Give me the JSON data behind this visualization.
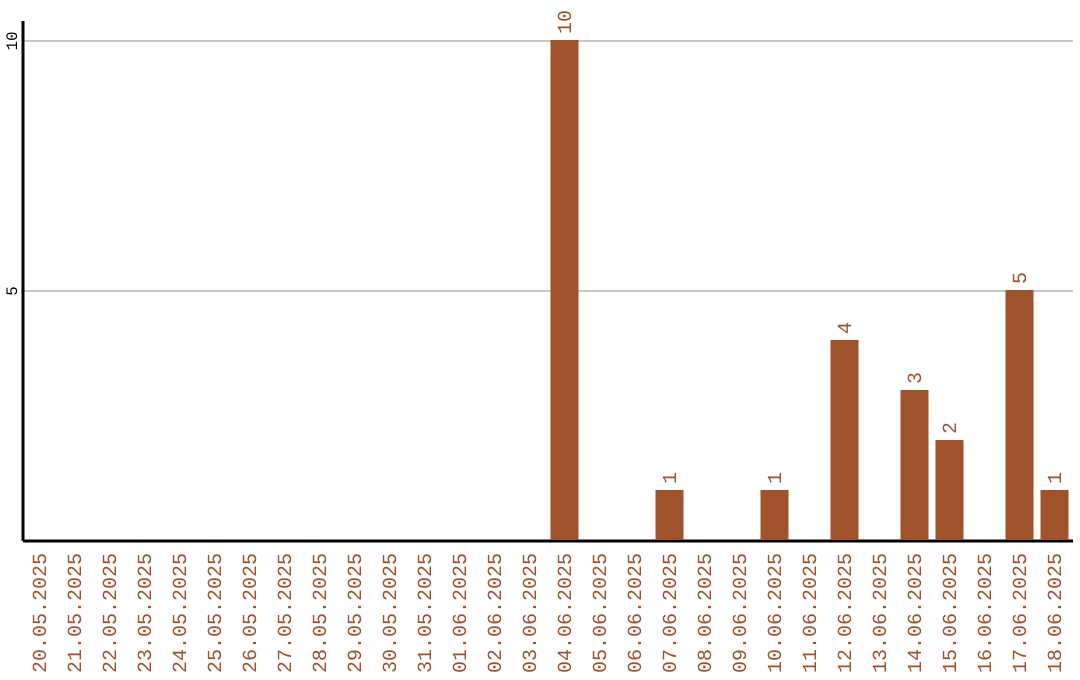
{
  "chart_data": {
    "type": "bar",
    "categories": [
      "20.05.2025",
      "21.05.2025",
      "22.05.2025",
      "23.05.2025",
      "24.05.2025",
      "25.05.2025",
      "26.05.2025",
      "27.05.2025",
      "28.05.2025",
      "29.05.2025",
      "30.05.2025",
      "31.05.2025",
      "01.06.2025",
      "02.06.2025",
      "03.06.2025",
      "04.06.2025",
      "05.06.2025",
      "06.06.2025",
      "07.06.2025",
      "08.06.2025",
      "09.06.2025",
      "10.06.2025",
      "11.06.2025",
      "12.06.2025",
      "13.06.2025",
      "14.06.2025",
      "15.06.2025",
      "16.06.2025",
      "17.06.2025",
      "18.06.2025"
    ],
    "values": [
      0,
      0,
      0,
      0,
      0,
      0,
      0,
      0,
      0,
      0,
      0,
      0,
      0,
      0,
      0,
      10,
      0,
      0,
      1,
      0,
      0,
      1,
      0,
      4,
      0,
      3,
      2,
      0,
      5,
      1
    ],
    "value_labels": [
      null,
      null,
      null,
      null,
      null,
      null,
      null,
      null,
      null,
      null,
      null,
      null,
      null,
      null,
      null,
      "10",
      null,
      null,
      "1",
      null,
      null,
      "1",
      null,
      "4",
      null,
      "3",
      "2",
      null,
      "5",
      "1"
    ],
    "color": "#a0522d",
    "ylim": [
      0,
      10.4
    ],
    "yticks": [
      5,
      10
    ],
    "grid": "y"
  }
}
